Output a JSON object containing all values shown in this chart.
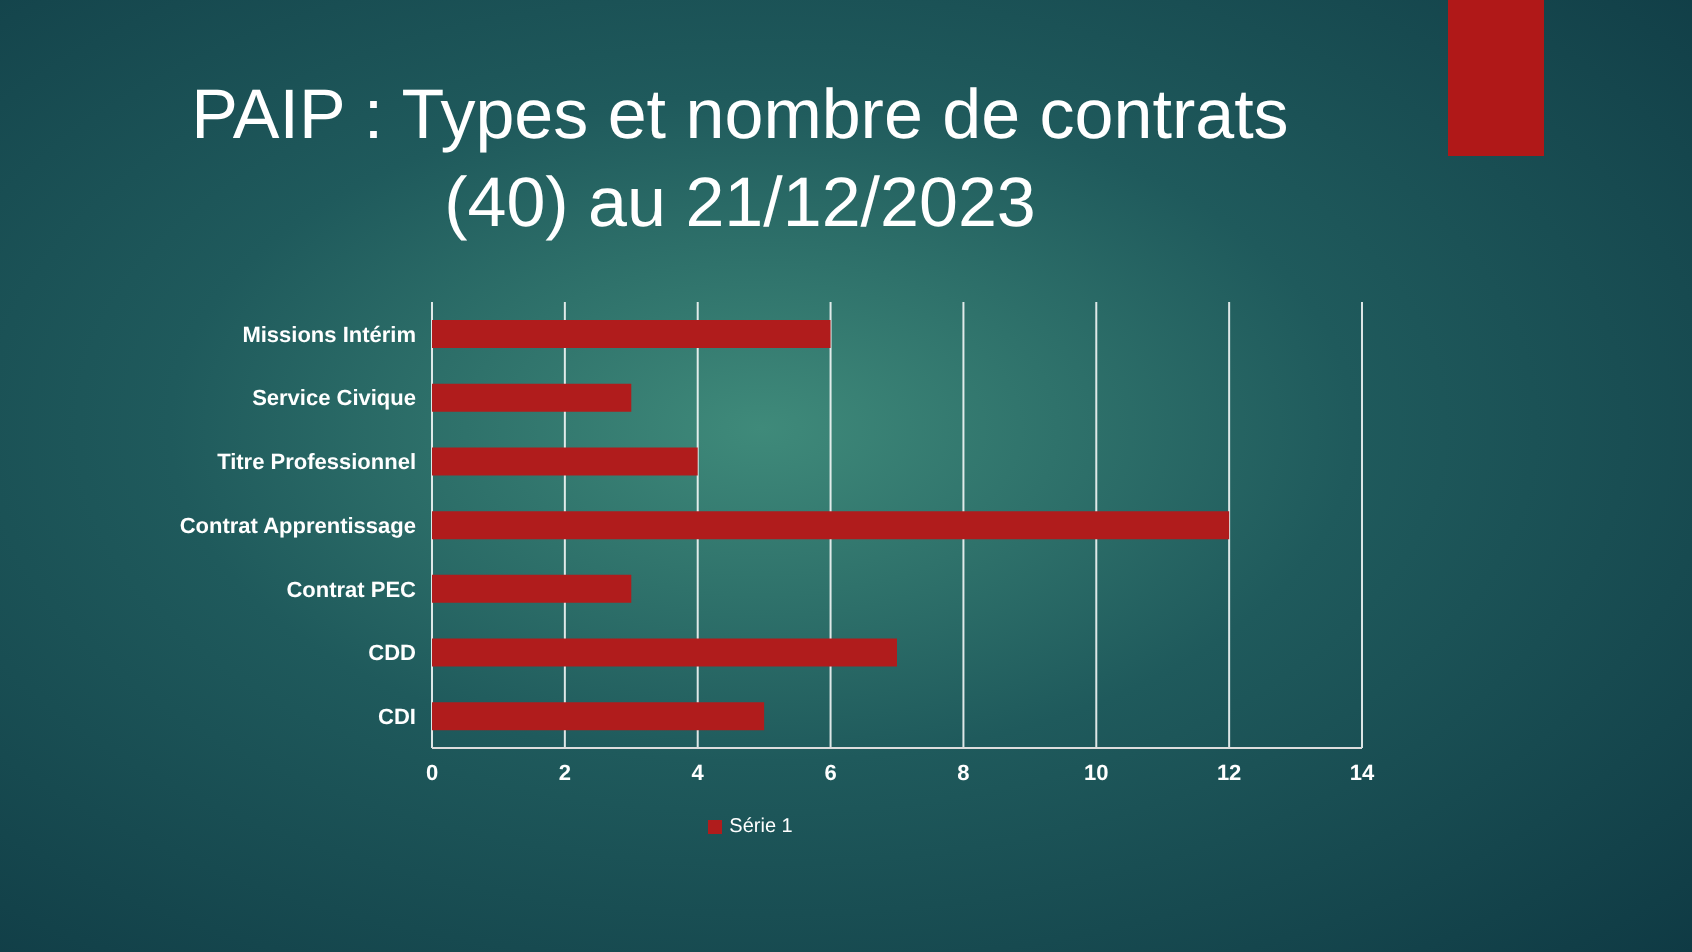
{
  "chart_data": {
    "type": "bar",
    "orientation": "horizontal",
    "title": "PAIP : Types et nombre de contrats (40) au 21/12/2023",
    "categories": [
      "Missions Intérim",
      "Service Civique",
      "Titre Professionnel",
      "Contrat Apprentissage",
      "Contrat PEC",
      "CDD",
      "CDI"
    ],
    "series": [
      {
        "name": "Série 1",
        "color": "#b01c1c",
        "values": [
          6,
          3,
          4,
          12,
          3,
          7,
          5
        ]
      }
    ],
    "xlim": [
      0,
      14
    ],
    "xticks": [
      0,
      2,
      4,
      6,
      8,
      10,
      12,
      14
    ],
    "grid": "x",
    "legend": "bottom"
  }
}
